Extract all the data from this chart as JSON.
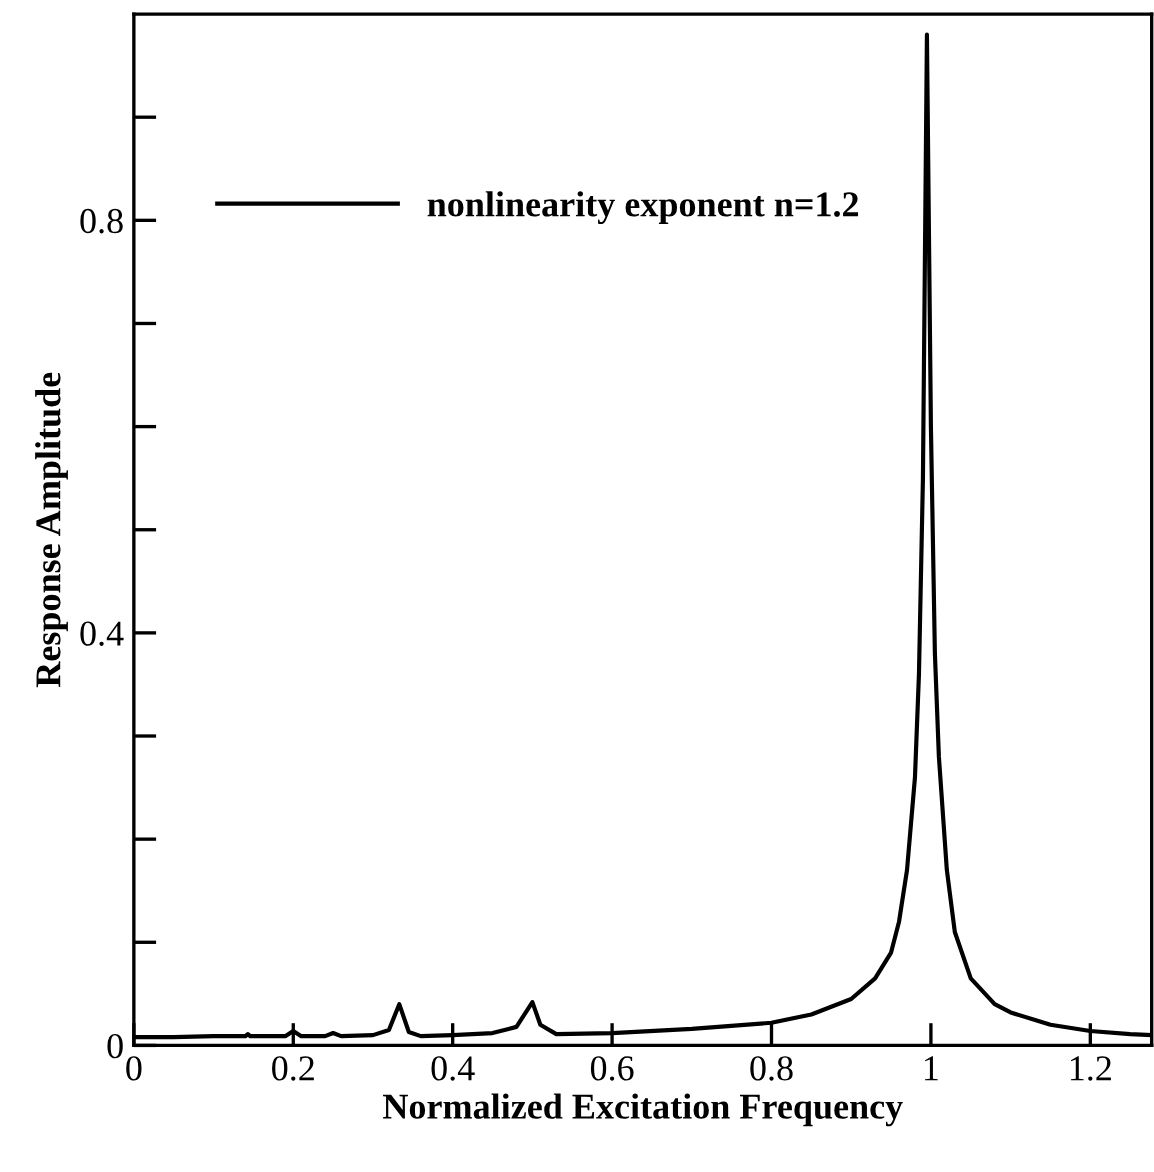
{
  "chart_data": {
    "type": "line",
    "xlabel": "Normalized Excitation Frequency",
    "ylabel": "Response Amplitude",
    "x": [
      0,
      0.05,
      0.1,
      0.14,
      0.143,
      0.146,
      0.19,
      0.2,
      0.21,
      0.24,
      0.25,
      0.26,
      0.3,
      0.32,
      0.333,
      0.345,
      0.36,
      0.4,
      0.45,
      0.48,
      0.5,
      0.51,
      0.53,
      0.6,
      0.7,
      0.8,
      0.85,
      0.9,
      0.93,
      0.95,
      0.96,
      0.97,
      0.98,
      0.985,
      0.99,
      0.995,
      1.0,
      1.005,
      1.01,
      1.02,
      1.03,
      1.05,
      1.08,
      1.1,
      1.15,
      1.2,
      1.25,
      1.277
    ],
    "series": [
      {
        "name": "nonlinearity exponent n=1.2",
        "color": "#000000",
        "values": [
          0.008,
          0.008,
          0.009,
          0.009,
          0.011,
          0.009,
          0.009,
          0.014,
          0.009,
          0.009,
          0.012,
          0.009,
          0.01,
          0.015,
          0.04,
          0.013,
          0.009,
          0.01,
          0.012,
          0.018,
          0.042,
          0.02,
          0.011,
          0.012,
          0.016,
          0.022,
          0.03,
          0.045,
          0.065,
          0.09,
          0.12,
          0.17,
          0.26,
          0.36,
          0.55,
          0.98,
          0.6,
          0.38,
          0.28,
          0.17,
          0.11,
          0.065,
          0.04,
          0.032,
          0.02,
          0.014,
          0.011,
          0.01
        ]
      }
    ],
    "xlim": [
      0,
      1.277
    ],
    "ylim": [
      0,
      1.0
    ],
    "xticks": [
      0,
      0.2,
      0.4,
      0.6,
      0.8,
      1,
      1.2
    ],
    "yticks": [
      0,
      {
        "value": 0.1,
        "label": null
      },
      {
        "value": 0.2,
        "label": null
      },
      {
        "value": 0.3,
        "label": null
      },
      0.4,
      {
        "value": 0.5,
        "label": null
      },
      {
        "value": 0.6,
        "label": null
      },
      {
        "value": 0.7,
        "label": null
      },
      0.8,
      {
        "value": 0.9,
        "label": null
      }
    ],
    "legend": "top left",
    "grid": false,
    "marker": "none",
    "line_style": "solid"
  }
}
